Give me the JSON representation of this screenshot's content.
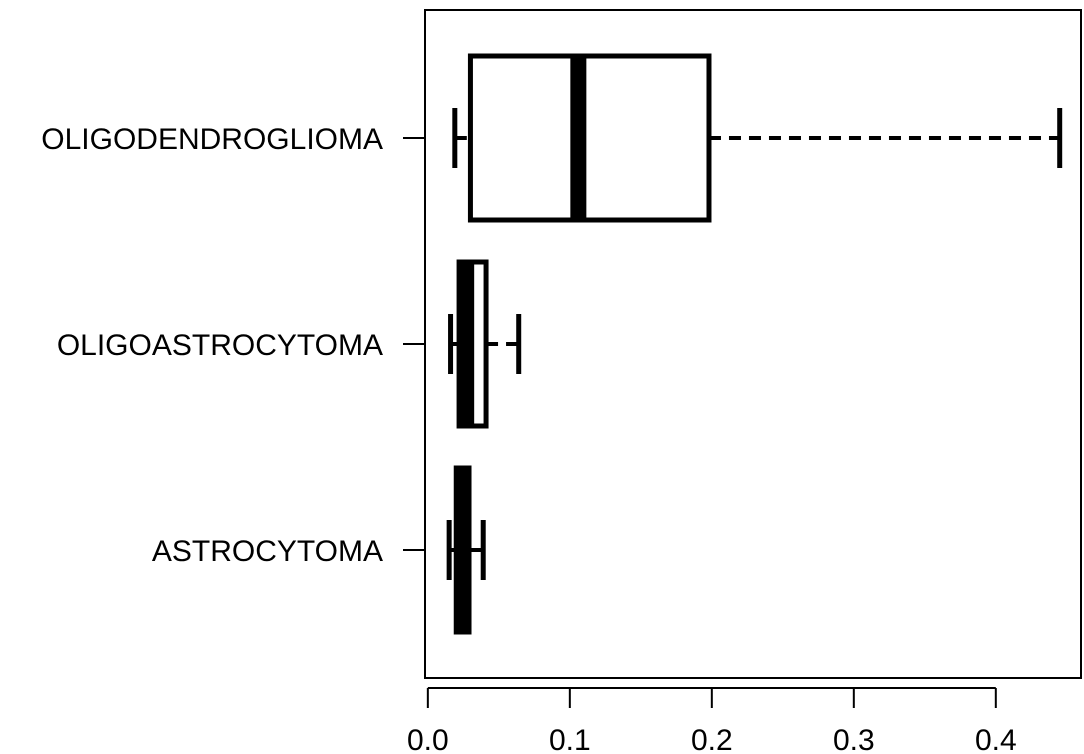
{
  "chart_data": {
    "type": "boxplot",
    "orientation": "horizontal",
    "title": "",
    "xlabel": "",
    "ylabel": "",
    "xlim": [
      -0.002,
      0.46
    ],
    "x_ticks": [
      0.0,
      0.1,
      0.2,
      0.3,
      0.4
    ],
    "x_tick_labels": [
      "0.0",
      "0.1",
      "0.2",
      "0.3",
      "0.4"
    ],
    "grid": false,
    "categories": [
      "OLIGODENDROGLIOMA",
      "OLIGOASTROCYTOMA",
      "ASTROCYTOMA"
    ],
    "boxes": [
      {
        "category": "OLIGODENDROGLIOMA",
        "whisker_low": 0.019,
        "q1": 0.03,
        "median": 0.106,
        "q3": 0.198,
        "whisker_high": 0.445
      },
      {
        "category": "OLIGOASTROCYTOMA",
        "whisker_low": 0.016,
        "q1": 0.022,
        "median": 0.027,
        "q3": 0.041,
        "whisker_high": 0.064
      },
      {
        "category": "ASTROCYTOMA",
        "whisker_low": 0.015,
        "q1": 0.02,
        "median": 0.025,
        "q3": 0.029,
        "whisker_high": 0.039
      }
    ]
  }
}
